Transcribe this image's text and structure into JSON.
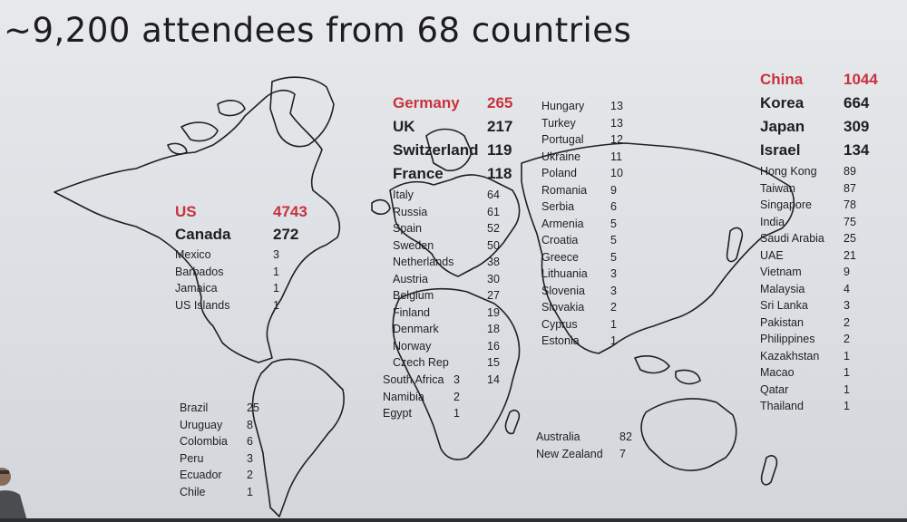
{
  "slide": {
    "title": "~9,200 attendees from 68 countries"
  },
  "colors": {
    "highlight": "#c7323c",
    "text": "#1f1f1f",
    "map_stroke": "#202020"
  },
  "regions": {
    "americas_north": [
      {
        "name": "US",
        "value": "4743",
        "style": "big-red"
      },
      {
        "name": "Canada",
        "value": "272",
        "style": "big"
      },
      {
        "name": "Mexico",
        "value": "3",
        "style": "small"
      },
      {
        "name": "Barbados",
        "value": "1",
        "style": "small"
      },
      {
        "name": "Jamaica",
        "value": "1",
        "style": "small"
      },
      {
        "name": "US Islands",
        "value": "1",
        "style": "small"
      }
    ],
    "americas_south": [
      {
        "name": "Brazil",
        "value": "25"
      },
      {
        "name": "Uruguay",
        "value": "8"
      },
      {
        "name": "Colombia",
        "value": "6"
      },
      {
        "name": "Peru",
        "value": "3"
      },
      {
        "name": "Ecuador",
        "value": "2"
      },
      {
        "name": "Chile",
        "value": "1"
      }
    ],
    "europe_main": [
      {
        "name": "Germany",
        "value": "265",
        "style": "big-red"
      },
      {
        "name": "UK",
        "value": "217",
        "style": "big"
      },
      {
        "name": "Switzerland",
        "value": "119",
        "style": "big"
      },
      {
        "name": "France",
        "value": "118",
        "style": "big"
      },
      {
        "name": "Italy",
        "value": "64",
        "style": "small"
      },
      {
        "name": "Russia",
        "value": "61",
        "style": "small"
      },
      {
        "name": "Spain",
        "value": "52",
        "style": "small"
      },
      {
        "name": "Sweden",
        "value": "50",
        "style": "small"
      },
      {
        "name": "Netherlands",
        "value": "38",
        "style": "small"
      },
      {
        "name": "Austria",
        "value": "30",
        "style": "small"
      },
      {
        "name": "Belgium",
        "value": "27",
        "style": "small"
      },
      {
        "name": "Finland",
        "value": "19",
        "style": "small"
      },
      {
        "name": "Denmark",
        "value": "18",
        "style": "small"
      },
      {
        "name": "Norway",
        "value": "16",
        "style": "small"
      },
      {
        "name": "Czech Rep",
        "value": "15",
        "style": "small"
      },
      {
        "name": "",
        "value": "14",
        "style": "small"
      }
    ],
    "africa": [
      {
        "name": "South Africa",
        "value": "3"
      },
      {
        "name": "Namibia",
        "value": "2"
      },
      {
        "name": "Egypt",
        "value": "1"
      }
    ],
    "europe_second": [
      {
        "name": "Hungary",
        "value": "13"
      },
      {
        "name": "Turkey",
        "value": "13"
      },
      {
        "name": "Portugal",
        "value": "12"
      },
      {
        "name": "Ukraine",
        "value": "11"
      },
      {
        "name": "Poland",
        "value": "10"
      },
      {
        "name": "Romania",
        "value": "9"
      },
      {
        "name": "Serbia",
        "value": "6"
      },
      {
        "name": "Armenia",
        "value": "5"
      },
      {
        "name": "Croatia",
        "value": "5"
      },
      {
        "name": "Greece",
        "value": "5"
      },
      {
        "name": "Lithuania",
        "value": "3"
      },
      {
        "name": "Slovenia",
        "value": "3"
      },
      {
        "name": "Slovakia",
        "value": "2"
      },
      {
        "name": "Cyprus",
        "value": "1"
      },
      {
        "name": "Estonia",
        "value": "1"
      }
    ],
    "oceania": [
      {
        "name": "Australia",
        "value": "82"
      },
      {
        "name": "New Zealand",
        "value": "7"
      }
    ],
    "asia": [
      {
        "name": "China",
        "value": "1044",
        "style": "big-red"
      },
      {
        "name": "Korea",
        "value": "664",
        "style": "big"
      },
      {
        "name": "Japan",
        "value": "309",
        "style": "big"
      },
      {
        "name": "Israel",
        "value": "134",
        "style": "big"
      },
      {
        "name": "Hong Kong",
        "value": "89",
        "style": "small"
      },
      {
        "name": "Taiwan",
        "value": "87",
        "style": "small"
      },
      {
        "name": "Singapore",
        "value": "78",
        "style": "small"
      },
      {
        "name": "India",
        "value": "75",
        "style": "small"
      },
      {
        "name": "Saudi Arabia",
        "value": "25",
        "style": "small"
      },
      {
        "name": "UAE",
        "value": "21",
        "style": "small"
      },
      {
        "name": "Vietnam",
        "value": "9",
        "style": "small"
      },
      {
        "name": "Malaysia",
        "value": "4",
        "style": "small"
      },
      {
        "name": "Sri Lanka",
        "value": "3",
        "style": "small"
      },
      {
        "name": "Pakistan",
        "value": "2",
        "style": "small"
      },
      {
        "name": "Philippines",
        "value": "2",
        "style": "small"
      },
      {
        "name": "Kazakhstan",
        "value": "1",
        "style": "small"
      },
      {
        "name": "Macao",
        "value": "1",
        "style": "small"
      },
      {
        "name": "Qatar",
        "value": "1",
        "style": "small"
      },
      {
        "name": "Thailand",
        "value": "1",
        "style": "small"
      }
    ]
  }
}
